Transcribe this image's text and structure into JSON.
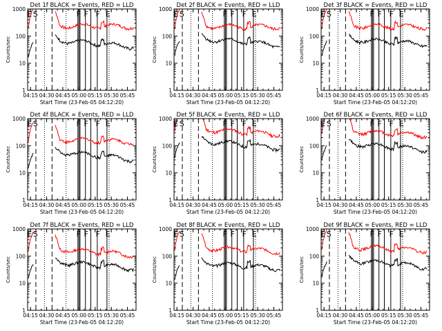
{
  "chart_data": {
    "type": "line",
    "layout": "3x3 grid",
    "ylabel": "Counts/sec",
    "xlabel": "Start Time (23-Feb-05 04:12:20)",
    "x_ticks": [
      "04:15",
      "04:30",
      "04:45",
      "05:00",
      "05:15",
      "05:30",
      "05:45"
    ],
    "x_tick_minutes": [
      15,
      30,
      45,
      60,
      75,
      90,
      105
    ],
    "xlim_minutes": [
      12.33,
      113
    ],
    "y_ticks": [
      "1",
      "10",
      "100",
      "1000"
    ],
    "y_tick_values": [
      1,
      10,
      100,
      1000
    ],
    "ylim": [
      1,
      1000
    ],
    "y_scale": "log",
    "series_colors": {
      "Events": "#000000",
      "LLD": "#ff0000"
    },
    "dotted_lines_minutes": [
      28,
      48,
      88
    ],
    "dashed_lines_minutes": [
      20,
      35
    ],
    "solid_lines_minutes": [
      59,
      60,
      61,
      66,
      71,
      77,
      86
    ],
    "markers": [
      {
        "text": "E",
        "minute": 13.8
      },
      {
        "text": "S",
        "minute": 19.2
      },
      {
        "text": "F",
        "minute": 59.5
      },
      {
        "text": "F",
        "minute": 66.5
      },
      {
        "text": "F",
        "minute": 77.5
      },
      {
        "text": "E",
        "minute": 86.5
      }
    ],
    "panels": [
      {
        "title": "Det 1f BLACK = Events, RED = LLD",
        "events_base": 70,
        "lld_base": 240,
        "events_end": 40,
        "lld_end": 230
      },
      {
        "title": "Det 2f BLACK = Events, RED = LLD",
        "events_base": 80,
        "lld_base": 230,
        "events_end": 45,
        "lld_end": 220
      },
      {
        "title": "Det 3f BLACK = Events, RED = LLD",
        "events_base": 75,
        "lld_base": 240,
        "events_end": 50,
        "lld_end": 220
      },
      {
        "title": "Det 4f BLACK = Events, RED = LLD",
        "events_base": 60,
        "lld_base": 170,
        "events_end": 30,
        "lld_end": 140
      },
      {
        "title": "Det 5f BLACK = Events, RED = LLD",
        "events_base": 150,
        "lld_base": 400,
        "events_end": 80,
        "lld_end": 260
      },
      {
        "title": "Det 6f BLACK = Events, RED = LLD",
        "events_base": 120,
        "lld_base": 340,
        "events_end": 70,
        "lld_end": 240
      },
      {
        "title": "Det 7f BLACK = Events, RED = LLD",
        "events_base": 60,
        "lld_base": 180,
        "events_end": 35,
        "lld_end": 110
      },
      {
        "title": "Det 8f BLACK = Events, RED = LLD",
        "events_base": 55,
        "lld_base": 200,
        "events_end": 35,
        "lld_end": 150
      },
      {
        "title": "Det 9f BLACK = Events, RED = LLD",
        "events_base": 70,
        "lld_base": 220,
        "events_end": 40,
        "lld_end": 160
      }
    ]
  }
}
